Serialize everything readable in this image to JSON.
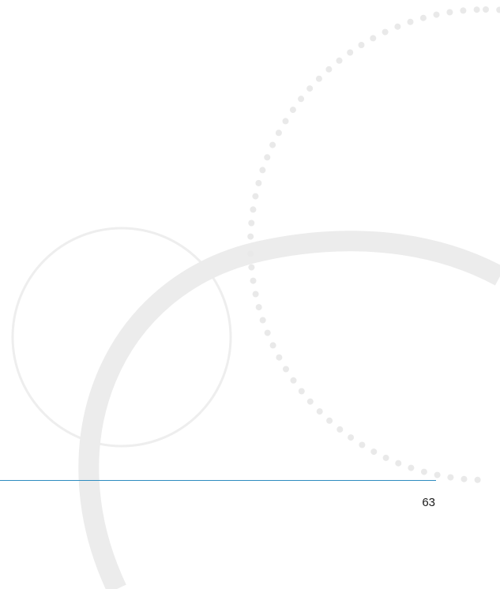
{
  "page": {
    "number": "63"
  },
  "colors": {
    "background": "#ffffff",
    "decoration": "#eeeeee",
    "rule": "#2e8bc0",
    "text": "#1a1a1a"
  }
}
